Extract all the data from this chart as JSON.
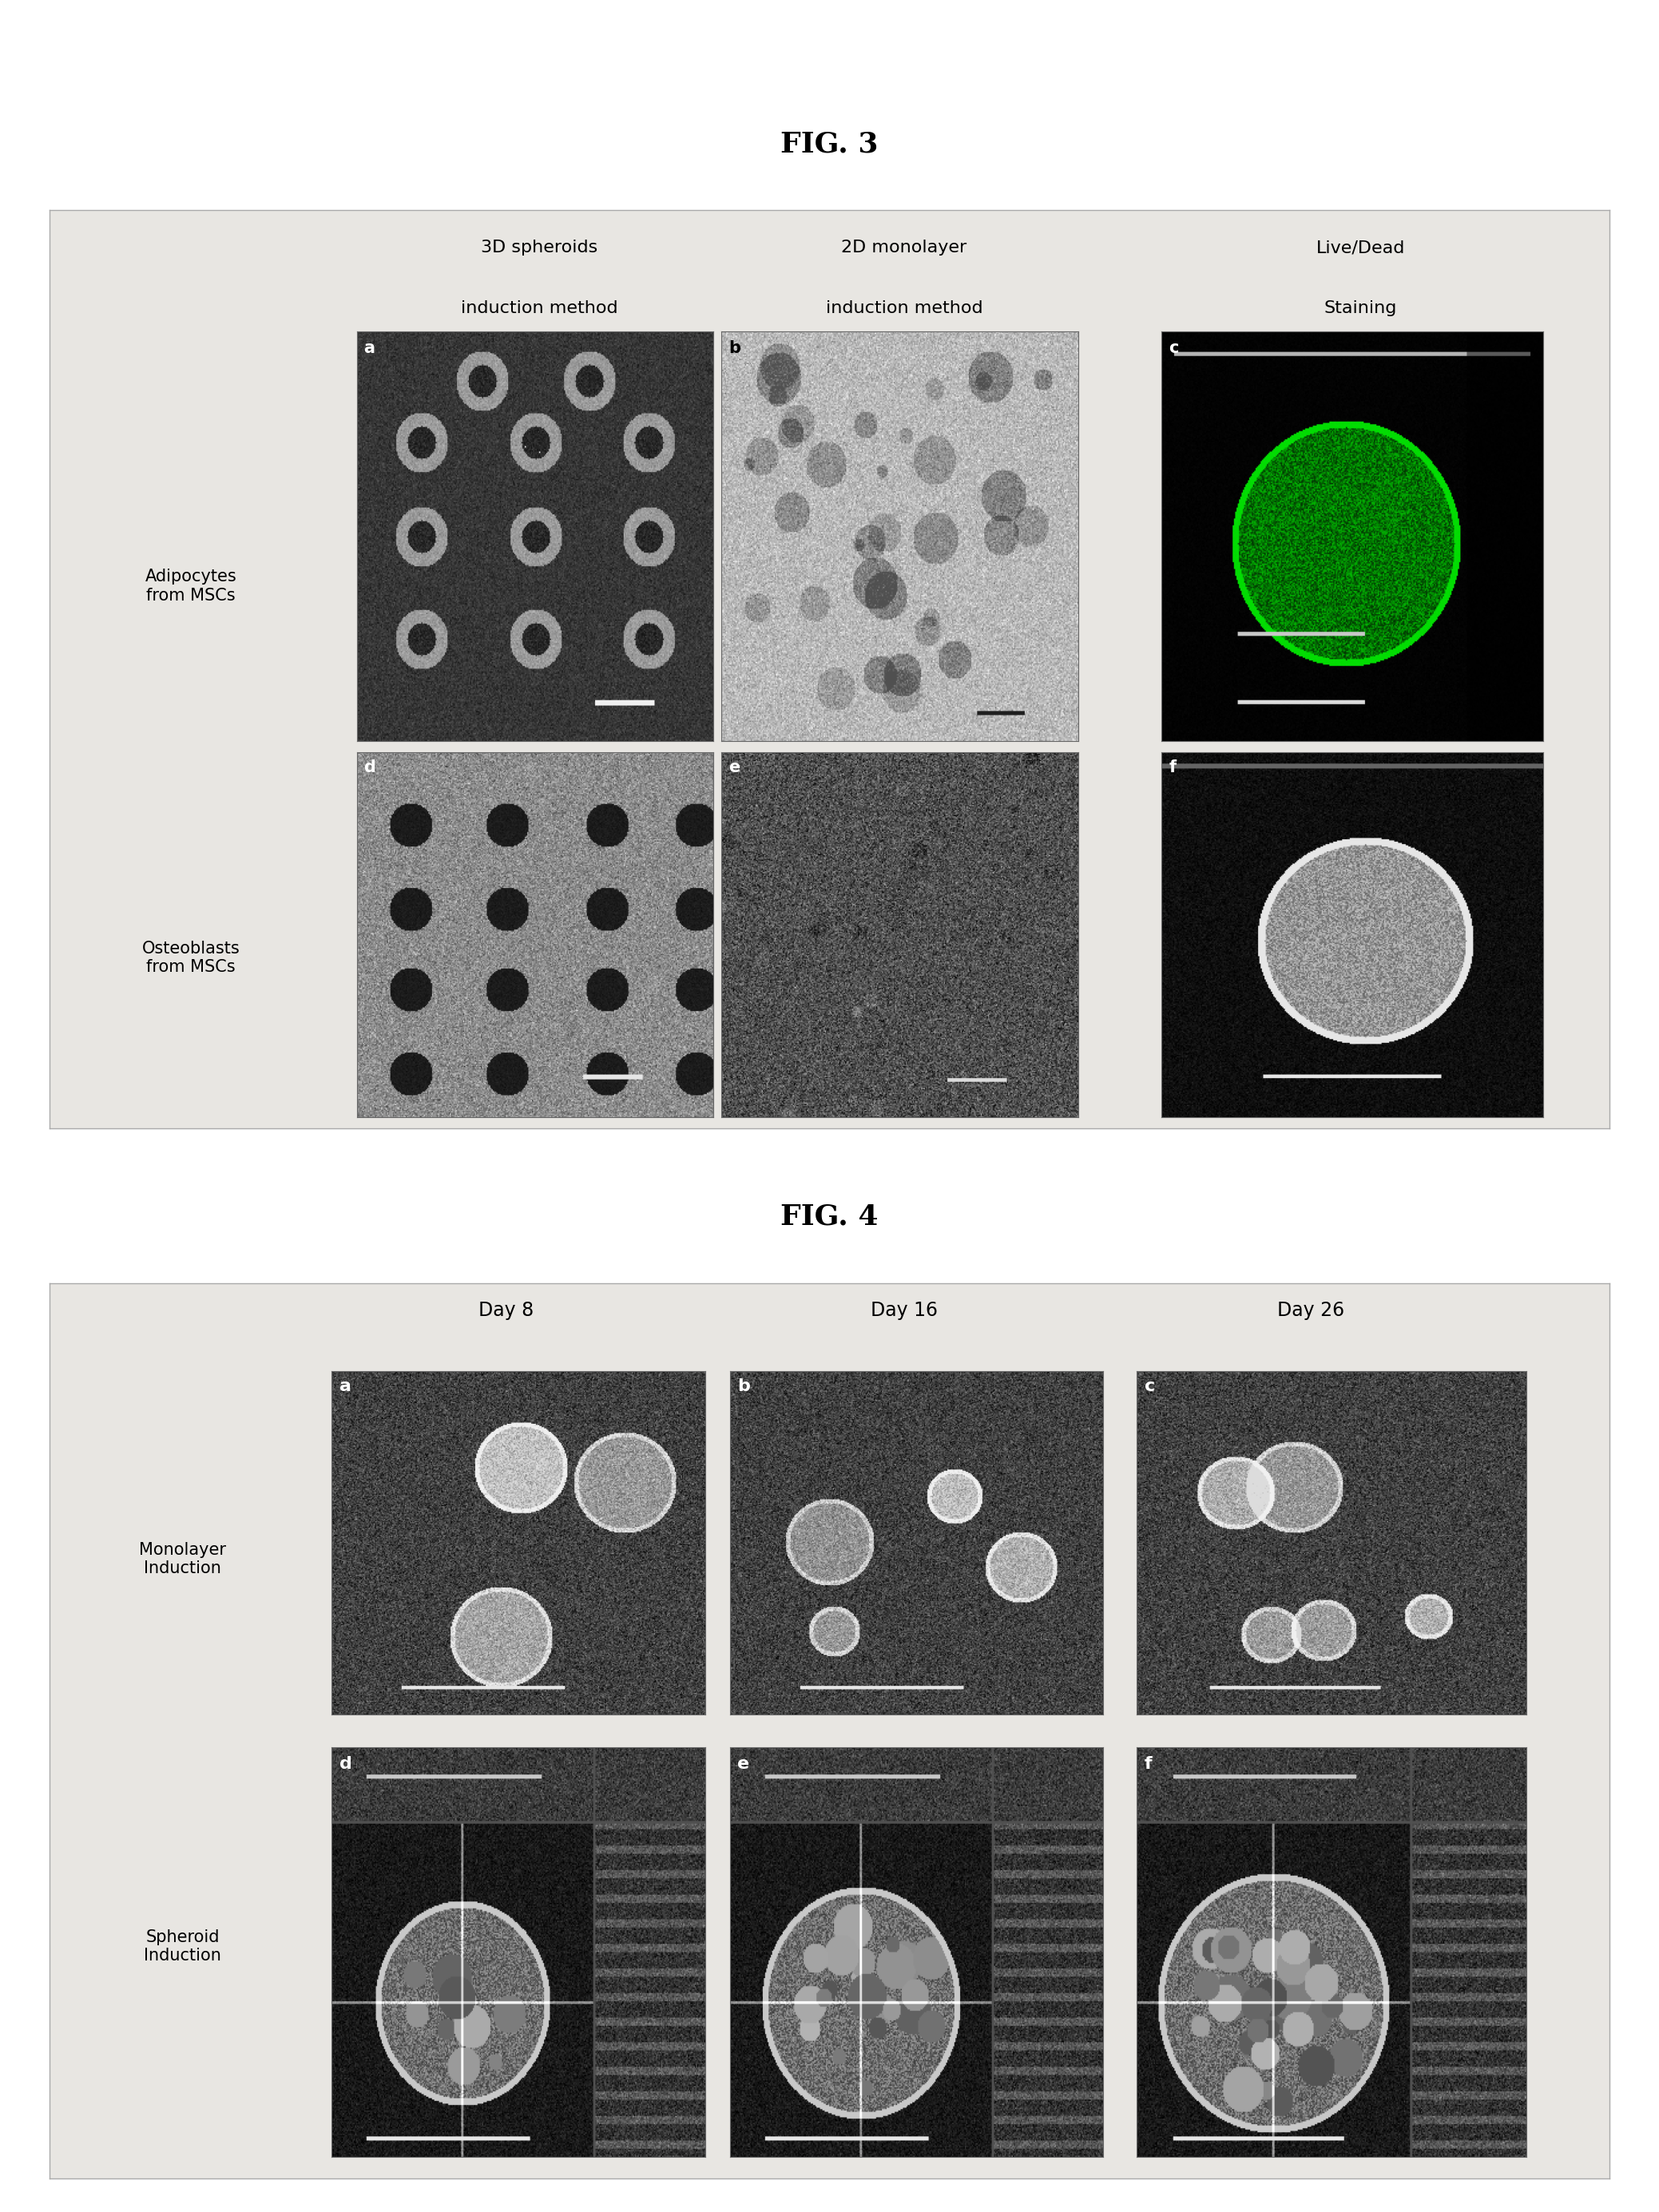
{
  "fig3_title": "FIG. 3",
  "fig4_title": "FIG. 4",
  "fig3_col_headers_line1": [
    "3D spheroids",
    "2D monolayer",
    "Live/Dead"
  ],
  "fig3_col_headers_line2": [
    "induction method",
    "induction method",
    "Staining"
  ],
  "fig3_row_headers": [
    "Adipocytes\nfrom MSCs",
    "Osteoblasts\nfrom MSCs"
  ],
  "fig3_panel_labels": [
    [
      "a",
      "b",
      "c"
    ],
    [
      "d",
      "e",
      "f"
    ]
  ],
  "fig4_col_headers": [
    "Day 8",
    "Day 16",
    "Day 26"
  ],
  "fig4_row_headers": [
    "Monolayer\nInduction",
    "Spheroid\nInduction"
  ],
  "fig4_panel_labels": [
    [
      "a",
      "b",
      "c"
    ],
    [
      "d",
      "e",
      "f"
    ]
  ],
  "bg_color": "#e8e6e2",
  "title_fontsize": 26,
  "header_fontsize": 16,
  "row_header_fontsize": 15,
  "panel_label_fontsize": 14,
  "fig_bg": "#ffffff"
}
